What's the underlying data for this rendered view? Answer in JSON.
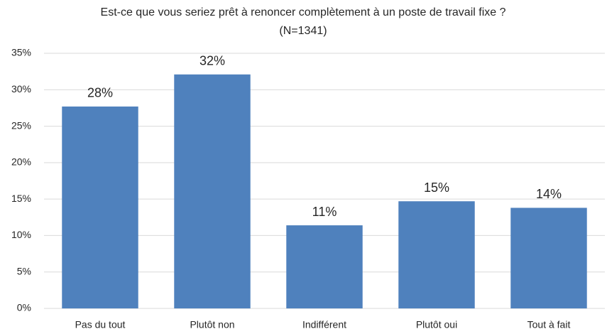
{
  "chart_data": {
    "type": "bar",
    "title": "Est-ce que vous seriez prêt à renoncer complètement à un poste de travail fixe ?",
    "subtitle": "(N=1341)",
    "categories": [
      "Pas du tout",
      "Plutôt non",
      "Indifférent",
      "Plutôt oui",
      "Tout à fait"
    ],
    "values": [
      27.7,
      32.1,
      11.4,
      14.7,
      13.8
    ],
    "value_labels": [
      "28%",
      "32%",
      "11%",
      "15%",
      "14%"
    ],
    "color": "#4f81bd",
    "ylim": [
      0,
      35
    ],
    "yticks": [
      {
        "value": 0,
        "label": "0%"
      },
      {
        "value": 5,
        "label": "5%"
      },
      {
        "value": 10,
        "label": "10%"
      },
      {
        "value": 15,
        "label": "15%"
      },
      {
        "value": 20,
        "label": "20%"
      },
      {
        "value": 25,
        "label": "25%"
      },
      {
        "value": 30,
        "label": "30%"
      },
      {
        "value": 35,
        "label": "35%"
      }
    ],
    "grid": true
  }
}
